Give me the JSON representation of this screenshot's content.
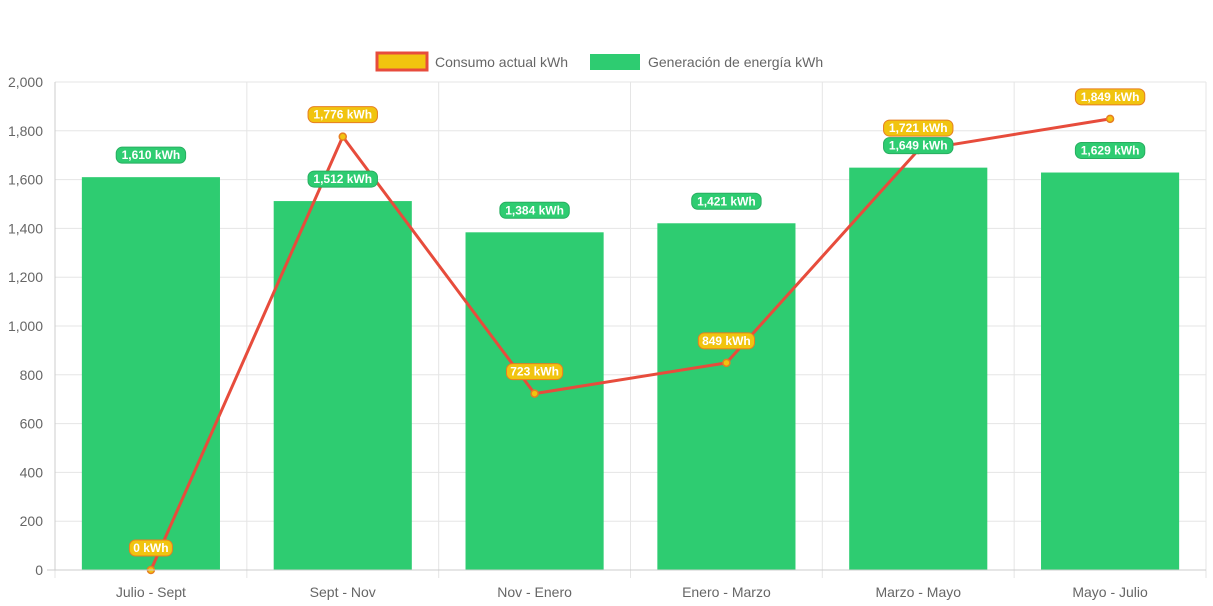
{
  "chart_data": {
    "type": "bar",
    "categories": [
      "Julio - Sept",
      "Sept - Nov",
      "Nov - Enero",
      "Enero - Marzo",
      "Marzo - Mayo",
      "Mayo - Julio"
    ],
    "ylim": [
      0,
      2000
    ],
    "yticks": [
      "0",
      "200",
      "400",
      "600",
      "800",
      "1,000",
      "1,200",
      "1,400",
      "1,600",
      "1,800",
      "2,000"
    ],
    "ytick_values": [
      0,
      200,
      400,
      600,
      800,
      1000,
      1200,
      1400,
      1600,
      1800,
      2000
    ],
    "grid": true,
    "legend_position": "top-center",
    "series": [
      {
        "name": "Consumo actual kWh",
        "kind": "line",
        "values": [
          0,
          1776,
          723,
          849,
          1721,
          1849
        ],
        "labels": [
          "0 kWh",
          "1,776 kWh",
          "723 kWh",
          "849 kWh",
          "1,721 kWh",
          "1,849 kWh"
        ],
        "color": "#e74c3c",
        "fill_color": "#f1c40f",
        "label_bg": "#f1c40f",
        "label_border": "#e67e22"
      },
      {
        "name": "Generación de energía kWh",
        "kind": "bar",
        "values": [
          1610,
          1512,
          1384,
          1421,
          1649,
          1629
        ],
        "labels": [
          "1,610 kWh",
          "1,512 kWh",
          "1,384 kWh",
          "1,421 kWh",
          "1,649 kWh",
          "1,629 kWh"
        ],
        "color": "#2ecc71",
        "label_bg": "#2ecc71",
        "label_border": "#27ae60"
      }
    ]
  }
}
